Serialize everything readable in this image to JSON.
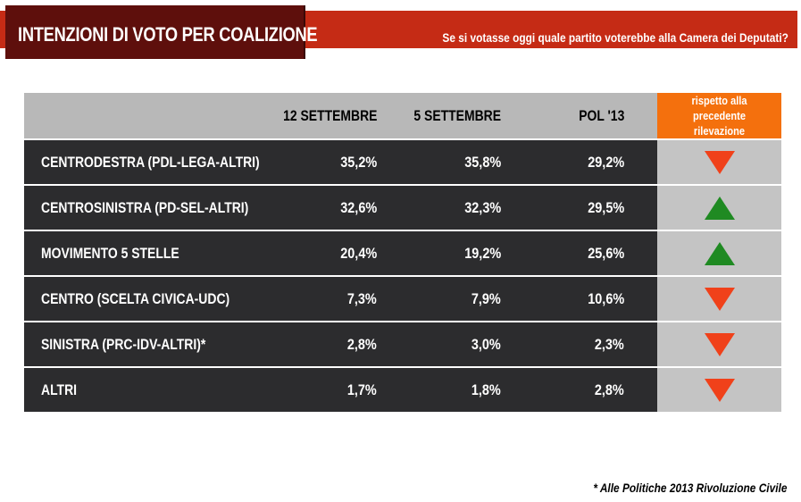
{
  "header": {
    "title": "INTENZIONI DI VOTO PER COALIZIONE",
    "subtitle": "Se si votasse oggi quale partito voterebbe alla Camera dei Deputati?"
  },
  "table": {
    "columns": [
      "",
      "12 SETTEMBRE",
      "5 SETTEMBRE",
      "POL '13"
    ],
    "indicator_header": [
      "rispetto alla",
      "precedente rilevazione"
    ],
    "rows": [
      {
        "label": "CENTRODESTRA (PDL-LEGA-ALTRI)",
        "v1": "35,2%",
        "v2": "35,8%",
        "v3": "29,2%",
        "trend": "down"
      },
      {
        "label": "CENTROSINISTRA (PD-SEL-ALTRI)",
        "v1": "32,6%",
        "v2": "32,3%",
        "v3": "29,5%",
        "trend": "up"
      },
      {
        "label": "MOVIMENTO 5 STELLE",
        "v1": "20,4%",
        "v2": "19,2%",
        "v3": "25,6%",
        "trend": "up"
      },
      {
        "label": "CENTRO (SCELTA CIVICA-UDC)",
        "v1": "7,3%",
        "v2": "7,9%",
        "v3": "10,6%",
        "trend": "down"
      },
      {
        "label": "SINISTRA (PRC-IDV-ALTRI)*",
        "v1": "2,8%",
        "v2": "3,0%",
        "v3": "2,3%",
        "trend": "down"
      },
      {
        "label": "ALTRI",
        "v1": "1,7%",
        "v2": "1,8%",
        "v3": "2,8%",
        "trend": "down"
      }
    ]
  },
  "footnote": "* Alle Politiche 2013 Rivoluzione Civile",
  "colors": {
    "title_bg": "#5e0f0c",
    "header_band": "#c52b15",
    "indicator_header": "#f4700d",
    "row_bg": "#2c2c2e",
    "up": "#1f8a22",
    "down": "#f0411a"
  }
}
